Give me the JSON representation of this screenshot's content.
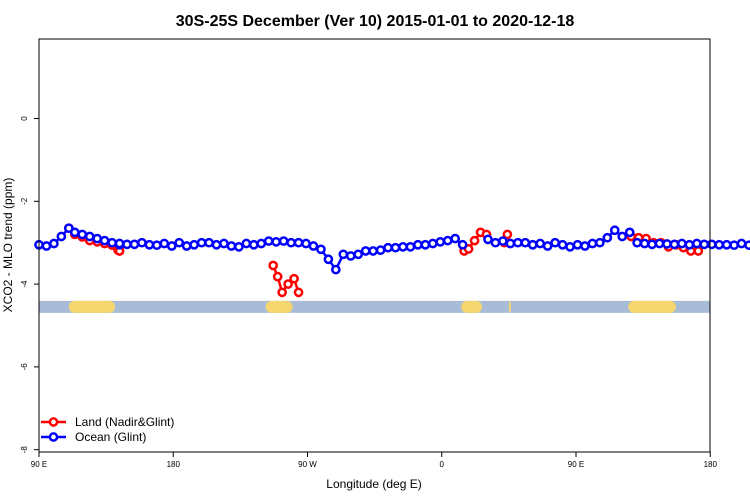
{
  "chart_data": {
    "type": "line",
    "title": "30S-25S December (Ver 10)   2015-01-01 to 2020-12-18",
    "xlabel": "Longitude (deg E)",
    "ylabel": "XCO2 - MLO trend (ppm)",
    "xlim": [
      90,
      450
    ],
    "ylim": [
      -8,
      2
    ],
    "xticks": [
      {
        "value": 90,
        "label": "90 E"
      },
      {
        "value": 180,
        "label": "180"
      },
      {
        "value": 270,
        "label": "90 W"
      },
      {
        "value": 360,
        "label": "0"
      },
      {
        "value": 450,
        "label": "90 E"
      },
      {
        "value": 540,
        "label": "180"
      }
    ],
    "yticks": [
      {
        "value": 0,
        "label": "0"
      },
      {
        "value": -2,
        "label": "-2"
      },
      {
        "value": -4,
        "label": "-4"
      },
      {
        "value": -6,
        "label": "-6"
      },
      {
        "value": -8,
        "label": "-8"
      }
    ],
    "grid": false,
    "legend": {
      "position": "bottom-left"
    },
    "surface_band": {
      "y": -4.55,
      "ocean_color": "#a8bcd8",
      "land_color": "#f6d66e",
      "land_segments": [
        [
          110,
          141
        ],
        [
          242,
          260
        ],
        [
          373,
          387
        ],
        [
          405,
          406
        ],
        [
          485,
          517
        ]
      ]
    },
    "series": [
      {
        "name": "Land (Nadir&Glint)",
        "color": "#ff0000",
        "marker": "open-circle",
        "segments": [
          {
            "x": [
              110,
              114,
              119,
              124,
              129,
              134,
              139,
              144
            ],
            "y": [
              -2.65,
              -2.8,
              -2.86,
              -2.95,
              -2.98,
              -3.02,
              -3.06,
              -3.1
            ]
          },
          {
            "x": [
              143,
              144,
              144
            ],
            "y": [
              -3.18,
              -3.2,
              -3.2
            ]
          },
          {
            "x": [
              247,
              250,
              253,
              257,
              261,
              264
            ],
            "y": [
              -3.55,
              -3.82,
              -4.2,
              -4.0,
              -3.87,
              -4.2
            ]
          },
          {
            "x": [
              375,
              378,
              382,
              386,
              390
            ],
            "y": [
              -3.2,
              -3.15,
              -2.95,
              -2.75,
              -2.8
            ]
          },
          {
            "x": [
              402,
              404
            ],
            "y": [
              -3.0,
              -2.8
            ]
          },
          {
            "x": [
              487,
              492,
              497,
              502,
              507,
              512,
              517,
              522,
              527,
              532
            ],
            "y": [
              -2.85,
              -2.88,
              -2.9,
              -3.0,
              -3.0,
              -3.1,
              -3.05,
              -3.12,
              -3.2,
              -3.2
            ]
          }
        ]
      },
      {
        "name": "Ocean (Glint)",
        "color": "#0000ff",
        "marker": "open-circle",
        "segments": [
          {
            "x": [
              90,
              95,
              100,
              105,
              110,
              114,
              119,
              124,
              129,
              134,
              139,
              144
            ],
            "y": [
              -3.05,
              -3.08,
              -3.02,
              -2.85,
              -2.65,
              -2.75,
              -2.8,
              -2.85,
              -2.9,
              -2.95,
              -3.0,
              -3.05
            ]
          },
          {
            "x": [
              144,
              149,
              154,
              159,
              164,
              169,
              174,
              179,
              184,
              189,
              194,
              199,
              204,
              209,
              214,
              219,
              224,
              229,
              234,
              239,
              244
            ],
            "y": [
              -3.02,
              -3.04,
              -3.04,
              -3.0,
              -3.05,
              -3.06,
              -3.02,
              -3.08,
              -3.0,
              -3.08,
              -3.05,
              -3.0,
              -3.0,
              -3.05,
              -3.02,
              -3.08,
              -3.1,
              -3.02,
              -3.05,
              -3.02,
              -2.96
            ]
          },
          {
            "x": [
              249,
              254,
              259,
              264,
              269,
              274,
              279,
              284,
              289,
              294,
              299,
              304,
              309,
              314,
              319,
              324,
              329,
              334
            ],
            "y": [
              -2.98,
              -2.96,
              -3.0,
              -3.0,
              -3.02,
              -3.08,
              -3.16,
              -3.4,
              -3.65,
              -3.28,
              -3.32,
              -3.28,
              -3.2,
              -3.2,
              -3.18,
              -3.12,
              -3.12,
              -3.1
            ]
          },
          {
            "x": [
              339,
              344,
              349,
              354,
              359,
              364,
              369,
              374
            ],
            "y": [
              -3.1,
              -3.05,
              -3.05,
              -3.02,
              -2.98,
              -2.95,
              -2.9,
              -3.05
            ]
          },
          {
            "x": [
              391,
              396,
              401,
              406,
              411,
              416,
              421,
              426,
              431,
              436,
              441,
              446,
              451,
              456,
              461,
              466,
              471,
              476,
              481,
              486
            ],
            "y": [
              -2.92,
              -3.0,
              -2.96,
              -3.02,
              -3.0,
              -3.0,
              -3.05,
              -3.02,
              -3.08,
              -3.0,
              -3.05,
              -3.1,
              -3.05,
              -3.08,
              -3.02,
              -3.0,
              -2.88,
              -2.7,
              -2.85,
              -2.75
            ]
          },
          {
            "x": [
              491,
              496,
              501,
              506,
              511,
              516,
              521,
              526,
              531,
              536,
              541,
              546,
              551,
              556,
              561,
              566,
              571,
              576,
              581,
              586
            ],
            "y": [
              -3.0,
              -3.02,
              -3.04,
              -3.02,
              -3.03,
              -3.04,
              -3.02,
              -3.05,
              -3.02,
              -3.04,
              -3.04,
              -3.05,
              -3.05,
              -3.06,
              -3.02,
              -3.06,
              -3.05,
              -3.08,
              -3.06,
              -3.08
            ]
          }
        ]
      }
    ]
  }
}
